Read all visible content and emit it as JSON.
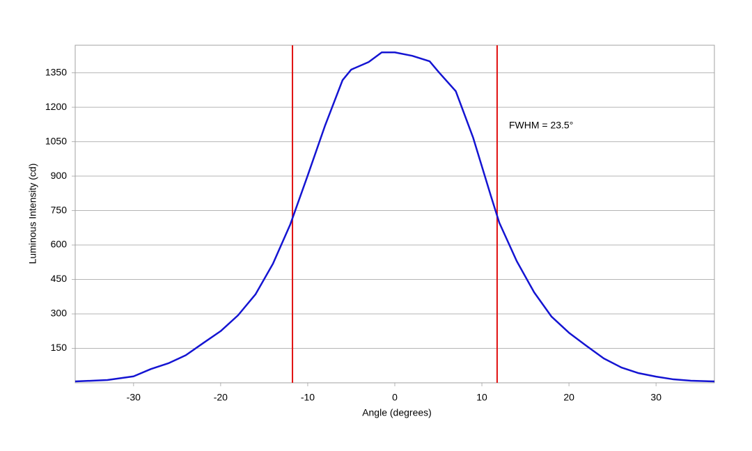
{
  "chart_data": {
    "type": "line",
    "x_label": "Angle (degrees)",
    "y_label": "Luminous Intensity (cd)",
    "annotation": "FWHM = 23.5°",
    "x": [
      -36.7,
      -33,
      -30,
      -28,
      -26,
      -24,
      -22,
      -20,
      -18,
      -16,
      -14,
      -12,
      -10,
      -8,
      -6,
      -5,
      -3,
      -1.5,
      0,
      2,
      4,
      5,
      7,
      9,
      11,
      12,
      14,
      16,
      18,
      20,
      22,
      24,
      26,
      28,
      30,
      32,
      34,
      36.7
    ],
    "series": [
      {
        "name": "Intensity",
        "color": "#1414d2",
        "values": [
          6,
          12,
          28,
          60,
          85,
          120,
          173,
          225,
          294,
          385,
          518,
          690,
          903,
          1121,
          1318,
          1364,
          1397,
          1439,
          1439,
          1424,
          1400,
          1355,
          1270,
          1067,
          818,
          697,
          530,
          394,
          288,
          218,
          161,
          106,
          67,
          42,
          27,
          15,
          9,
          6
        ]
      }
    ],
    "vlines": {
      "x": [
        -11.75,
        11.75
      ],
      "color": "#e01010"
    },
    "xlim": [
      -36.7,
      36.7
    ],
    "ylim": [
      0,
      1470
    ],
    "xticks": [
      -30,
      -20,
      -10,
      0,
      10,
      20,
      30
    ],
    "yticks": [
      150,
      300,
      450,
      600,
      750,
      900,
      1050,
      1200,
      1350
    ],
    "grid": true
  }
}
